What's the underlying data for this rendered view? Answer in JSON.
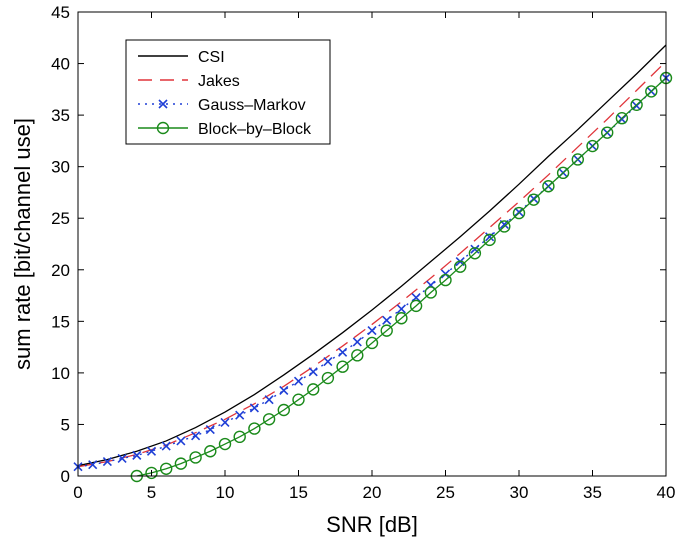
{
  "chart_data": {
    "type": "line",
    "xlabel": "SNR [dB]",
    "ylabel": "sum rate [bit/channel use]",
    "xlim": [
      0,
      40
    ],
    "ylim": [
      0,
      45
    ],
    "xticks": [
      0,
      5,
      10,
      15,
      20,
      25,
      30,
      35,
      40
    ],
    "yticks": [
      0,
      5,
      10,
      15,
      20,
      25,
      30,
      35,
      40,
      45
    ],
    "grid": false,
    "legend_position": "top-left",
    "series": [
      {
        "name": "CSI",
        "color": "#000000",
        "style": "solid",
        "marker": "none",
        "x": [
          0,
          2,
          4,
          6,
          8,
          10,
          12,
          14,
          16,
          18,
          20,
          22,
          24,
          26,
          28,
          30,
          32,
          34,
          36,
          38,
          40
        ],
        "y": [
          1.0,
          1.6,
          2.4,
          3.4,
          4.7,
          6.2,
          7.9,
          9.8,
          11.8,
          13.9,
          16.1,
          18.4,
          20.8,
          23.2,
          25.7,
          28.3,
          31.0,
          33.6,
          36.3,
          39.0,
          41.8
        ]
      },
      {
        "name": "Jakes",
        "color": "#e0343a",
        "style": "dashed",
        "marker": "none",
        "x": [
          0,
          2,
          4,
          6,
          8,
          10,
          12,
          14,
          16,
          18,
          20,
          22,
          24,
          26,
          28,
          30,
          32,
          34,
          36,
          38,
          40
        ],
        "y": [
          0.9,
          1.4,
          2.1,
          3.0,
          4.2,
          5.5,
          7.0,
          8.7,
          10.6,
          12.6,
          14.7,
          16.9,
          19.2,
          21.6,
          24.1,
          26.6,
          29.2,
          31.9,
          34.6,
          37.4,
          40.2
        ]
      },
      {
        "name": "Gauss–Markov",
        "color": "#1f3fd6",
        "style": "dotted",
        "marker": "x",
        "x": [
          0,
          1,
          2,
          3,
          4,
          5,
          6,
          7,
          8,
          9,
          10,
          11,
          12,
          13,
          14,
          15,
          16,
          17,
          18,
          19,
          20,
          21,
          22,
          23,
          24,
          25,
          26,
          27,
          28,
          29,
          30,
          31,
          32,
          33,
          34,
          35,
          36,
          37,
          38,
          39,
          40
        ],
        "y": [
          0.9,
          1.1,
          1.4,
          1.7,
          2.0,
          2.4,
          2.9,
          3.4,
          3.9,
          4.5,
          5.2,
          5.9,
          6.6,
          7.4,
          8.3,
          9.2,
          10.1,
          11.1,
          12.0,
          13.0,
          14.1,
          15.1,
          16.2,
          17.3,
          18.5,
          19.6,
          20.8,
          22.0,
          23.2,
          24.4,
          25.6,
          26.9,
          28.1,
          29.4,
          30.7,
          32.0,
          33.3,
          34.6,
          35.9,
          37.3,
          38.6
        ]
      },
      {
        "name": "Block–by–Block",
        "color": "#1a8a1a",
        "style": "solid",
        "marker": "o",
        "x": [
          4,
          5,
          6,
          7,
          8,
          9,
          10,
          11,
          12,
          13,
          14,
          15,
          16,
          17,
          18,
          19,
          20,
          21,
          22,
          23,
          24,
          25,
          26,
          27,
          28,
          29,
          30,
          31,
          32,
          33,
          34,
          35,
          36,
          37,
          38,
          39,
          40
        ],
        "y": [
          0.0,
          0.3,
          0.7,
          1.2,
          1.8,
          2.4,
          3.1,
          3.8,
          4.6,
          5.5,
          6.4,
          7.4,
          8.4,
          9.5,
          10.6,
          11.7,
          12.9,
          14.1,
          15.3,
          16.5,
          17.8,
          19.0,
          20.3,
          21.6,
          22.9,
          24.2,
          25.5,
          26.8,
          28.1,
          29.4,
          30.7,
          32.0,
          33.3,
          34.7,
          36.0,
          37.3,
          38.6
        ]
      }
    ]
  }
}
